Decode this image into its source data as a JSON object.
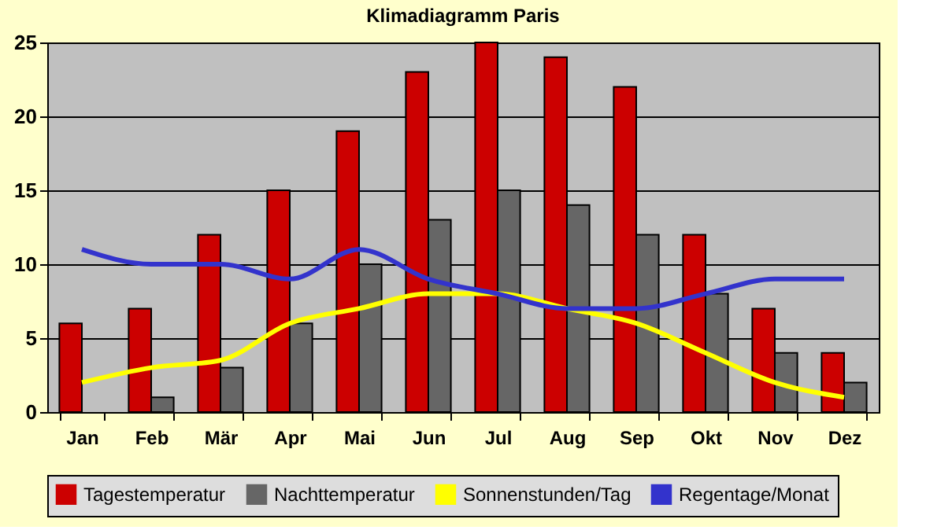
{
  "chart_data": {
    "type": "bar",
    "title": "Klimadiagramm Paris",
    "categories": [
      "Jan",
      "Feb",
      "Mär",
      "Apr",
      "Mai",
      "Jun",
      "Jul",
      "Aug",
      "Sep",
      "Okt",
      "Nov",
      "Dez"
    ],
    "series": [
      {
        "name": "Tagestemperatur",
        "color": "#cc0000",
        "values": [
          6,
          7,
          12,
          15,
          19,
          23,
          25,
          24,
          22,
          12,
          7,
          4
        ]
      },
      {
        "name": "Nachttemperatur",
        "color": "#666666",
        "values": [
          null,
          1,
          3,
          6,
          10,
          13,
          15,
          14,
          12,
          8,
          4,
          2
        ]
      },
      {
        "name": "Sonnenstunden/Tag",
        "type": "line",
        "color": "#ffff00",
        "values": [
          2,
          3,
          3.5,
          6,
          7,
          8,
          8,
          7,
          6,
          4,
          2,
          1
        ]
      },
      {
        "name": "Regentage/Monat",
        "type": "line",
        "color": "#3333cc",
        "values": [
          11,
          10,
          10,
          9,
          11,
          9,
          8,
          7,
          7,
          8,
          9,
          9
        ]
      }
    ],
    "ylim": [
      0,
      25
    ],
    "yticks": [
      0,
      5,
      10,
      15,
      20,
      25
    ],
    "grid": "y",
    "legend": "bottom"
  }
}
